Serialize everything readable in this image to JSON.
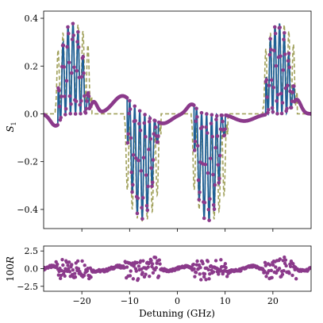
{
  "chart_data": [
    {
      "type": "line",
      "panel": "main",
      "xlabel": "",
      "ylabel": "S₁",
      "ylabel_main": "S",
      "ylabel_sub": "1",
      "xlim": [
        -28,
        28
      ],
      "ylim": [
        -0.48,
        0.43
      ],
      "yticks": [
        -0.4,
        -0.2,
        0.0,
        0.2,
        0.4
      ],
      "ytick_labels": [
        "−0.4",
        "−0.2",
        "0.0",
        "0.2",
        "0.4"
      ],
      "xticks": [
        -20,
        -10,
        0,
        10,
        20
      ],
      "grid": false,
      "legend": "none",
      "series": [
        {
          "role": "measured data points",
          "style": "markers",
          "color": "#8b3a8b"
        },
        {
          "role": "fitted model",
          "style": "solid line",
          "color": "#1f5f95"
        },
        {
          "role": "reference model",
          "style": "dashed line",
          "color": "#a0a05a"
        }
      ],
      "features": {
        "baseline": 0.0,
        "resonance_centers": [
          -18.5,
          -10.5,
          3.5,
          18.5
        ],
        "oscillation_bands": [
          {
            "x_range": [
              -25,
              -18.5
            ],
            "sign": 1,
            "peak": 0.38
          },
          {
            "x_range": [
              -10.5,
              -4.0
            ],
            "sign": -1,
            "peak": 0.45
          },
          {
            "x_range": [
              3.5,
              10.0
            ],
            "sign": -1,
            "peak": 0.45
          },
          {
            "x_range": [
              18.5,
              24.5
            ],
            "sign": 1,
            "peak": 0.38
          }
        ],
        "local_extrema": [
          {
            "x": -10.5,
            "y": 0.07
          },
          {
            "x": 3.5,
            "y": 0.04
          },
          {
            "x": -25.5,
            "y": -0.05
          }
        ]
      }
    },
    {
      "type": "scatter",
      "panel": "residual",
      "xlabel": "Detuning (GHz)",
      "ylabel": "100R",
      "ylabel_num": "100",
      "ylabel_var": "R",
      "xlim": [
        -28,
        28
      ],
      "ylim": [
        -3.2,
        3.2
      ],
      "yticks": [
        -2.5,
        0.0,
        2.5
      ],
      "ytick_labels": [
        "−2.5",
        "0.0",
        "2.5"
      ],
      "xticks": [
        -20,
        -10,
        0,
        10,
        20
      ],
      "xtick_labels": [
        "−20",
        "−10",
        "0",
        "10",
        "20"
      ],
      "grid": false,
      "legend": "none",
      "series": [
        {
          "role": "residuals",
          "style": "markers",
          "color": "#8b3a8b"
        }
      ]
    }
  ]
}
